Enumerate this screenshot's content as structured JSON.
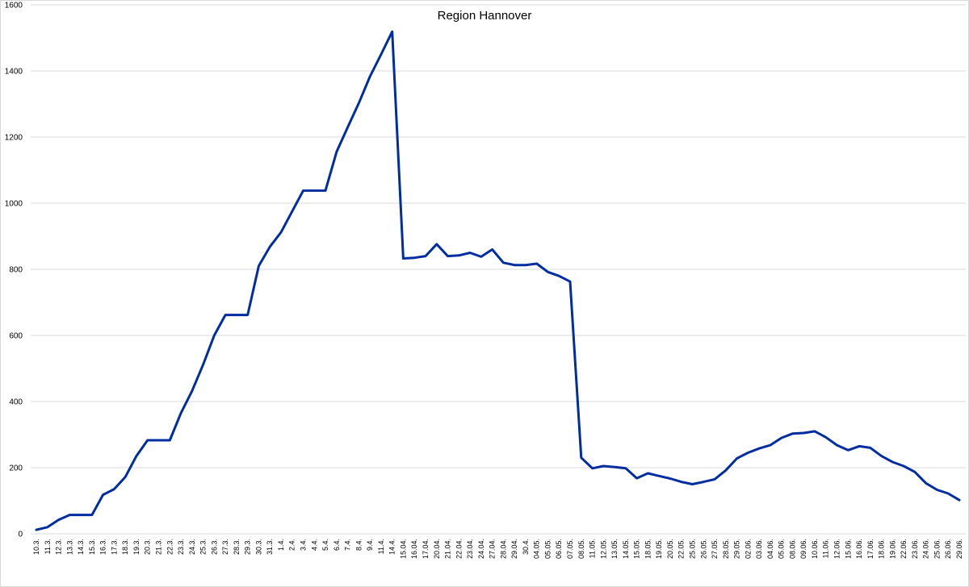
{
  "chart_data": {
    "type": "line",
    "title": "Region Hannover",
    "xlabel": "",
    "ylabel": "",
    "ylim": [
      0,
      1600
    ],
    "yticks": [
      0,
      200,
      400,
      600,
      800,
      1000,
      1200,
      1400,
      1600
    ],
    "grid": true,
    "legend": "none",
    "line_color": "#002DA0",
    "categories": [
      "10.3.",
      "11.3.",
      "12.3.",
      "13.3.",
      "14.3.",
      "15.3.",
      "16.3.",
      "17.3.",
      "18.3.",
      "19.3.",
      "20.3.",
      "21.3.",
      "22.3.",
      "23.3.",
      "24.3.",
      "25.3.",
      "26.3.",
      "27.3.",
      "28.3.",
      "29.3.",
      "30.3.",
      "31.3.",
      "1.4.",
      "2.4.",
      "3.4.",
      "4.4.",
      "5.4.",
      "6.4.",
      "7.4.",
      "8.4.",
      "9.4.",
      "11.4.",
      "14.4.",
      "15.04.",
      "16.04.",
      "17.04.",
      "20.04.",
      "21.04.",
      "22.04.",
      "23.04.",
      "24.04.",
      "27.04.",
      "28.04.",
      "29.04.",
      "30.4.",
      "04.05.",
      "05.05.",
      "06.05.",
      "07.05.",
      "08.05.",
      "11.05.",
      "12.05.",
      "13.05.",
      "14.05.",
      "15.05.",
      "18.05.",
      "19.05.",
      "20.05.",
      "22.05.",
      "25.05.",
      "26.05.",
      "27.05.",
      "28.05.",
      "29.05.",
      "02.06.",
      "03.06.",
      "04.06.",
      "05.06.",
      "08.06.",
      "09.06.",
      "10.06.",
      "11.06.",
      "12.06.",
      "15.06.",
      "16.06.",
      "17.06.",
      "18.06.",
      "19.06.",
      "22.06.",
      "23.06.",
      "24.06.",
      "25.06.",
      "26.06.",
      "29.06."
    ],
    "values": [
      12,
      20,
      42,
      57,
      57,
      57,
      118,
      135,
      172,
      235,
      283,
      283,
      283,
      365,
      432,
      512,
      600,
      662,
      662,
      662,
      810,
      868,
      912,
      975,
      1038,
      1038,
      1038,
      1155,
      1230,
      1303,
      1383,
      1450,
      1519,
      833,
      835,
      840,
      876,
      840,
      842,
      850,
      838,
      860,
      820,
      813,
      813,
      817,
      792,
      780,
      763,
      230,
      198,
      205,
      202,
      198,
      168,
      183,
      175,
      167,
      157,
      150,
      157,
      165,
      192,
      228,
      245,
      258,
      268,
      290,
      303,
      305,
      310,
      292,
      268,
      253,
      265,
      260,
      235,
      217,
      205,
      187,
      153,
      133,
      122,
      102
    ]
  }
}
